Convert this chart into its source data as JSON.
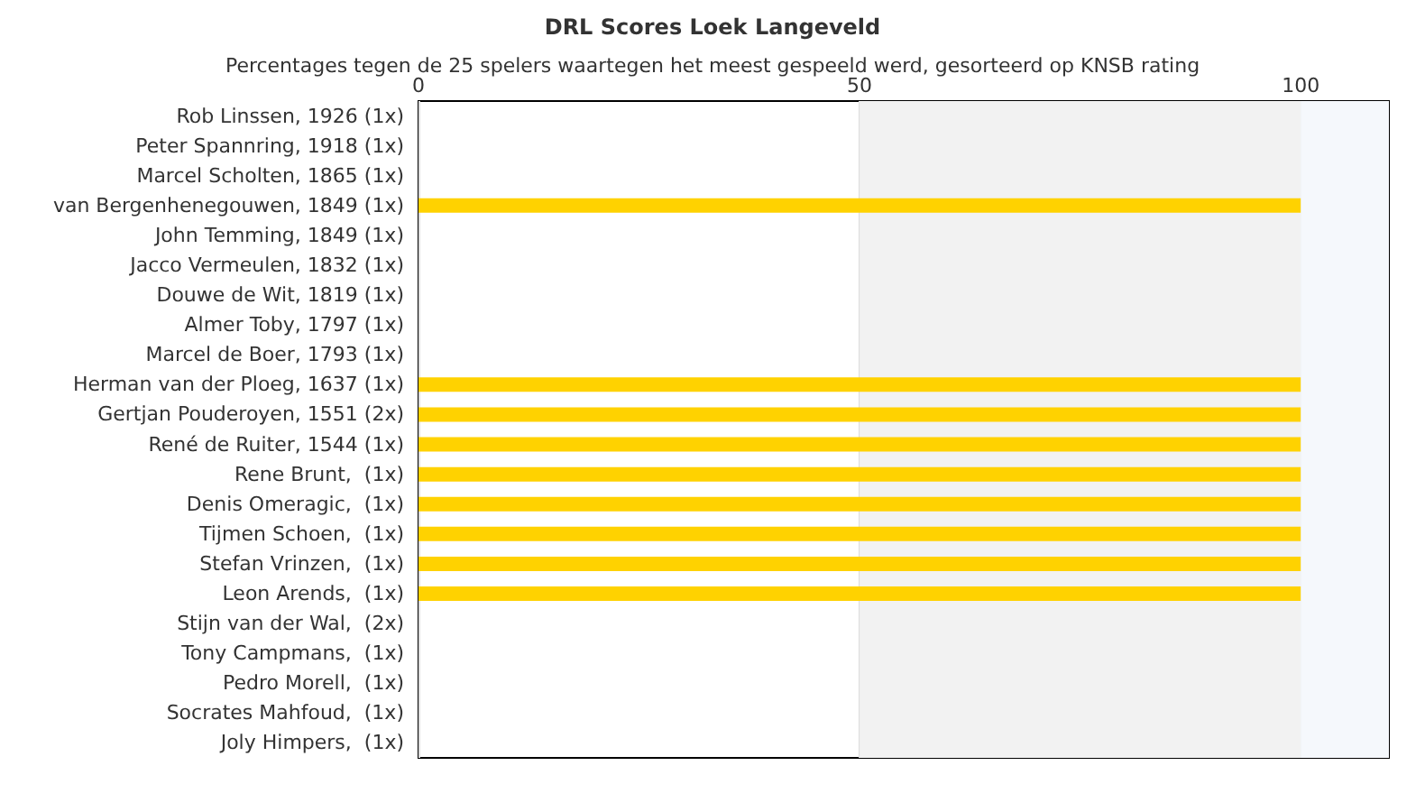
{
  "chart_data": {
    "type": "bar",
    "orientation": "horizontal",
    "title": "DRL Scores Loek Langeveld",
    "subtitle": "Percentages tegen de 25 spelers waartegen het meest gespeeld werd, gesorteerd op KNSB rating",
    "categories": [
      "Rob Linssen, 1926 (1x)",
      "Peter Spannring, 1918 (1x)",
      "Marcel Scholten, 1865 (1x)",
      "van Bergenhenegouwen, 1849 (1x)",
      "John Temming, 1849 (1x)",
      "Jacco Vermeulen, 1832 (1x)",
      "Douwe de Wit, 1819 (1x)",
      "Almer Toby, 1797 (1x)",
      "Marcel de Boer, 1793 (1x)",
      "Herman van der Ploeg, 1637 (1x)",
      "Gertjan Pouderoyen, 1551 (2x)",
      "René de Ruiter, 1544 (1x)",
      "Rene Brunt,  (1x)",
      "Denis Omeragic,  (1x)",
      "Tijmen Schoen,  (1x)",
      "Stefan Vrinzen,  (1x)",
      "Leon Arends,  (1x)",
      "Stijn van der Wal,  (2x)",
      "Tony Campmans,  (1x)",
      "Pedro Morell,  (1x)",
      "Socrates Mahfoud,  (1x)",
      "Joly Himpers,  (1x)"
    ],
    "values": [
      0,
      0,
      0,
      100,
      0,
      0,
      0,
      0,
      0,
      100,
      100,
      100,
      100,
      100,
      100,
      100,
      100,
      0,
      0,
      0,
      0,
      0
    ],
    "color": "#ffd200",
    "xlim": [
      0,
      110
    ],
    "xticks": [
      0,
      50,
      100
    ],
    "grid": "x",
    "bands": [
      {
        "axis": "x",
        "from": 50,
        "to": 100,
        "color": "#f2f2f2"
      },
      {
        "axis": "x",
        "from": 100,
        "to": 110,
        "color": "#f5f8fc"
      }
    ]
  }
}
